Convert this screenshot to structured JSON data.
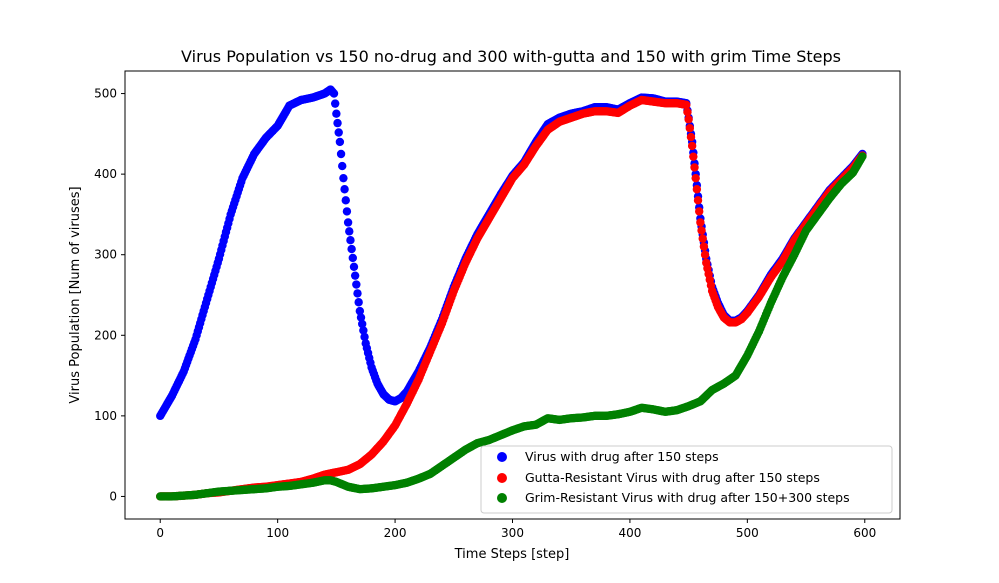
{
  "chart_data": {
    "type": "scatter",
    "title": "Virus Population vs 150 no-drug and 300 with-gutta and 150 with grim Time Steps",
    "xlabel": "Time Steps [step]",
    "ylabel": "Virus Population [Num of viruses]",
    "xlim": [
      -30,
      630
    ],
    "ylim": [
      -28,
      528
    ],
    "xticks": [
      0,
      100,
      200,
      300,
      400,
      500,
      600
    ],
    "yticks": [
      0,
      100,
      200,
      300,
      400,
      500
    ],
    "grid": false,
    "legend_position": "lower-right",
    "series": [
      {
        "name": "Virus with drug after 150 steps",
        "color": "#0000ff",
        "points": [
          [
            0,
            100
          ],
          [
            10,
            125
          ],
          [
            20,
            155
          ],
          [
            30,
            195
          ],
          [
            40,
            245
          ],
          [
            50,
            295
          ],
          [
            60,
            350
          ],
          [
            70,
            395
          ],
          [
            80,
            425
          ],
          [
            90,
            445
          ],
          [
            100,
            460
          ],
          [
            110,
            485
          ],
          [
            120,
            492
          ],
          [
            130,
            495
          ],
          [
            140,
            500
          ],
          [
            145,
            505
          ],
          [
            148,
            500
          ],
          [
            150,
            475
          ],
          [
            153,
            440
          ],
          [
            156,
            395
          ],
          [
            160,
            340
          ],
          [
            165,
            285
          ],
          [
            170,
            230
          ],
          [
            175,
            190
          ],
          [
            180,
            160
          ],
          [
            185,
            140
          ],
          [
            190,
            127
          ],
          [
            195,
            120
          ],
          [
            200,
            118
          ],
          [
            205,
            122
          ],
          [
            210,
            130
          ],
          [
            220,
            155
          ],
          [
            230,
            185
          ],
          [
            240,
            220
          ],
          [
            250,
            260
          ],
          [
            260,
            295
          ],
          [
            270,
            325
          ],
          [
            280,
            350
          ],
          [
            290,
            375
          ],
          [
            300,
            398
          ],
          [
            310,
            415
          ],
          [
            320,
            440
          ],
          [
            330,
            462
          ],
          [
            340,
            470
          ],
          [
            350,
            475
          ],
          [
            360,
            478
          ],
          [
            370,
            483
          ],
          [
            380,
            483
          ],
          [
            390,
            480
          ],
          [
            400,
            488
          ],
          [
            410,
            495
          ],
          [
            420,
            494
          ],
          [
            430,
            490
          ],
          [
            440,
            490
          ],
          [
            448,
            488
          ],
          [
            450,
            470
          ],
          [
            453,
            440
          ],
          [
            456,
            400
          ],
          [
            460,
            345
          ],
          [
            465,
            295
          ],
          [
            470,
            260
          ],
          [
            475,
            240
          ],
          [
            480,
            225
          ],
          [
            485,
            218
          ],
          [
            490,
            218
          ],
          [
            495,
            222
          ],
          [
            500,
            230
          ],
          [
            510,
            250
          ],
          [
            520,
            275
          ],
          [
            530,
            295
          ],
          [
            540,
            320
          ],
          [
            550,
            340
          ],
          [
            560,
            360
          ],
          [
            570,
            380
          ],
          [
            580,
            395
          ],
          [
            590,
            410
          ],
          [
            598,
            425
          ]
        ]
      },
      {
        "name": "Gutta-Resistant Virus with drug after 150 steps",
        "color": "#ff0000",
        "points": [
          [
            0,
            0
          ],
          [
            10,
            0
          ],
          [
            20,
            1
          ],
          [
            30,
            2
          ],
          [
            40,
            4
          ],
          [
            50,
            5
          ],
          [
            60,
            7
          ],
          [
            70,
            9
          ],
          [
            80,
            11
          ],
          [
            90,
            12
          ],
          [
            100,
            14
          ],
          [
            110,
            16
          ],
          [
            120,
            18
          ],
          [
            130,
            22
          ],
          [
            140,
            27
          ],
          [
            150,
            30
          ],
          [
            160,
            33
          ],
          [
            170,
            40
          ],
          [
            180,
            52
          ],
          [
            190,
            68
          ],
          [
            200,
            88
          ],
          [
            210,
            115
          ],
          [
            220,
            145
          ],
          [
            230,
            180
          ],
          [
            240,
            215
          ],
          [
            250,
            255
          ],
          [
            260,
            290
          ],
          [
            270,
            320
          ],
          [
            280,
            345
          ],
          [
            290,
            370
          ],
          [
            300,
            395
          ],
          [
            310,
            412
          ],
          [
            320,
            435
          ],
          [
            330,
            455
          ],
          [
            340,
            465
          ],
          [
            350,
            470
          ],
          [
            360,
            475
          ],
          [
            370,
            478
          ],
          [
            380,
            478
          ],
          [
            390,
            476
          ],
          [
            400,
            485
          ],
          [
            410,
            492
          ],
          [
            420,
            490
          ],
          [
            430,
            488
          ],
          [
            440,
            488
          ],
          [
            448,
            486
          ],
          [
            450,
            468
          ],
          [
            453,
            435
          ],
          [
            456,
            395
          ],
          [
            460,
            340
          ],
          [
            465,
            290
          ],
          [
            470,
            255
          ],
          [
            475,
            235
          ],
          [
            480,
            222
          ],
          [
            485,
            216
          ],
          [
            490,
            216
          ],
          [
            495,
            220
          ],
          [
            500,
            228
          ],
          [
            510,
            248
          ],
          [
            520,
            272
          ],
          [
            530,
            292
          ],
          [
            540,
            318
          ],
          [
            550,
            338
          ],
          [
            560,
            358
          ],
          [
            570,
            378
          ],
          [
            580,
            393
          ],
          [
            590,
            408
          ],
          [
            598,
            423
          ]
        ]
      },
      {
        "name": "Grim-Resistant Virus with drug after 150+300 steps",
        "color": "#008000",
        "points": [
          [
            0,
            0
          ],
          [
            10,
            0
          ],
          [
            20,
            1
          ],
          [
            30,
            2
          ],
          [
            40,
            4
          ],
          [
            50,
            6
          ],
          [
            60,
            7
          ],
          [
            70,
            8
          ],
          [
            80,
            9
          ],
          [
            90,
            10
          ],
          [
            100,
            12
          ],
          [
            110,
            13
          ],
          [
            120,
            15
          ],
          [
            130,
            17
          ],
          [
            140,
            20
          ],
          [
            145,
            20
          ],
          [
            150,
            18
          ],
          [
            160,
            12
          ],
          [
            170,
            9
          ],
          [
            180,
            10
          ],
          [
            190,
            12
          ],
          [
            200,
            14
          ],
          [
            210,
            17
          ],
          [
            220,
            22
          ],
          [
            230,
            28
          ],
          [
            240,
            38
          ],
          [
            250,
            48
          ],
          [
            260,
            58
          ],
          [
            270,
            66
          ],
          [
            280,
            70
          ],
          [
            290,
            76
          ],
          [
            300,
            82
          ],
          [
            310,
            87
          ],
          [
            320,
            89
          ],
          [
            330,
            97
          ],
          [
            340,
            95
          ],
          [
            350,
            97
          ],
          [
            360,
            98
          ],
          [
            370,
            100
          ],
          [
            380,
            100
          ],
          [
            390,
            102
          ],
          [
            400,
            105
          ],
          [
            410,
            110
          ],
          [
            420,
            108
          ],
          [
            430,
            105
          ],
          [
            440,
            107
          ],
          [
            450,
            112
          ],
          [
            460,
            118
          ],
          [
            470,
            132
          ],
          [
            480,
            140
          ],
          [
            490,
            150
          ],
          [
            500,
            175
          ],
          [
            510,
            205
          ],
          [
            520,
            240
          ],
          [
            530,
            272
          ],
          [
            540,
            300
          ],
          [
            550,
            330
          ],
          [
            560,
            350
          ],
          [
            570,
            370
          ],
          [
            580,
            388
          ],
          [
            590,
            402
          ],
          [
            598,
            422
          ]
        ]
      }
    ]
  }
}
